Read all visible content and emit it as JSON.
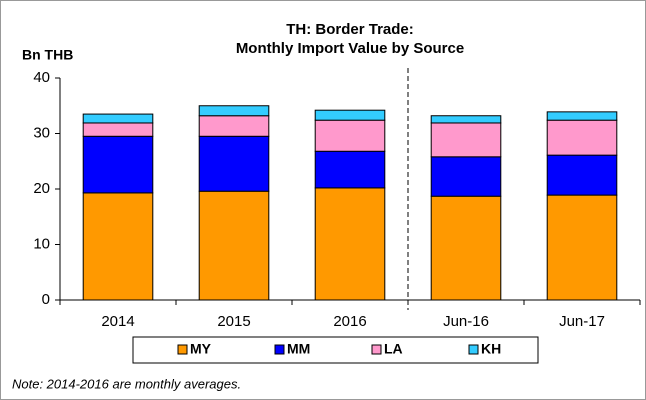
{
  "chart_data": {
    "type": "stacked_bar",
    "title": "TH: Border Trade:",
    "subtitle": "Monthly Import Value by Source",
    "y_label": "Bn THB",
    "note": "Note: 2014-2016 are monthly averages.",
    "categories": [
      "2014",
      "2015",
      "2016",
      "Jun-16",
      "Jun-17"
    ],
    "series": [
      {
        "name": "MY",
        "color": "#ff9900",
        "values": [
          19.3,
          19.6,
          20.2,
          18.7,
          18.9
        ]
      },
      {
        "name": "MM",
        "color": "#0000ff",
        "values": [
          10.2,
          9.9,
          6.6,
          7.1,
          7.2
        ]
      },
      {
        "name": "LA",
        "color": "#ff99cc",
        "values": [
          2.4,
          3.7,
          5.6,
          6.1,
          6.3
        ]
      },
      {
        "name": "KH",
        "color": "#33ccff",
        "values": [
          1.6,
          1.8,
          1.8,
          1.3,
          1.5
        ]
      }
    ],
    "ylim": [
      0,
      40
    ],
    "yticks": [
      0,
      10,
      20,
      30,
      40
    ],
    "divider_after": 2,
    "legend": "bottom"
  }
}
